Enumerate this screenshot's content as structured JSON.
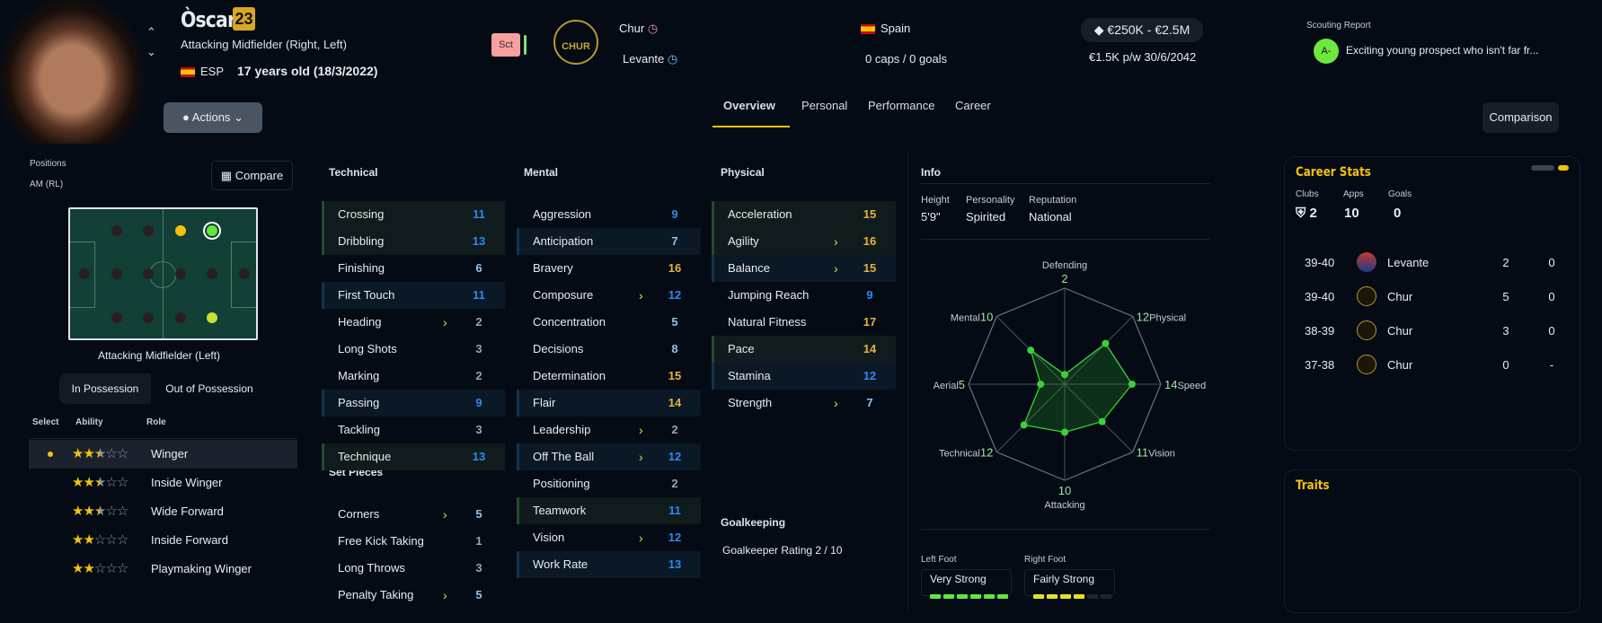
{
  "header": {
    "name": "Òscar",
    "ability_badge": "23",
    "position": "Attacking Midfielder (Right, Left)",
    "nationality_code": "ESP",
    "age": "17 years old (18/3/2022)",
    "squad_badge": "Sct",
    "club": "Chur",
    "club_logo_text": "CHUR",
    "loan_club": "Levante",
    "nation": "Spain",
    "caps": "0 caps / 0 goals",
    "value": "€250K - €2.5M",
    "wage": "€1.5K p/w 30/6/2042",
    "scouting_label": "Scouting Report",
    "scouting_grade": "A-",
    "scouting_text": "Exciting young prospect who isn't far fr...",
    "actions": "Actions",
    "comparison": "Comparison"
  },
  "tabs": [
    {
      "label": "Overview"
    },
    {
      "label": "Personal"
    },
    {
      "label": "Performance"
    },
    {
      "label": "Career"
    }
  ],
  "positions": {
    "label": "Positions",
    "value": "AM (RL)",
    "compare": "Compare",
    "caption": "Attacking Midfielder (Left)",
    "toggle": [
      "In Possession",
      "Out of Possession"
    ],
    "cols": [
      "Select",
      "Ability",
      "Role"
    ],
    "roles": [
      {
        "name": "Winger",
        "stars": 2.5,
        "selected": true
      },
      {
        "name": "Inside Winger",
        "stars": 2.5
      },
      {
        "name": "Wide Forward",
        "stars": 2.5
      },
      {
        "name": "Inside Forward",
        "stars": 2
      },
      {
        "name": "Playmaking Winger",
        "stars": 2
      }
    ]
  },
  "attributes": {
    "technical": {
      "title": "Technical",
      "items": [
        [
          "Crossing",
          11,
          "g",
          0
        ],
        [
          "Dribbling",
          13,
          "g",
          0
        ],
        [
          "Finishing",
          6,
          "",
          0
        ],
        [
          "First Touch",
          11,
          "b",
          0
        ],
        [
          "Heading",
          2,
          "",
          1
        ],
        [
          "Long Shots",
          3,
          "",
          0
        ],
        [
          "Marking",
          2,
          "",
          0
        ],
        [
          "Passing",
          9,
          "b",
          0
        ],
        [
          "Tackling",
          3,
          "",
          0
        ],
        [
          "Technique",
          13,
          "g",
          0
        ]
      ]
    },
    "set_pieces": {
      "title": "Set Pieces",
      "items": [
        [
          "Corners",
          5,
          "",
          1
        ],
        [
          "Free Kick Taking",
          1,
          "",
          0
        ],
        [
          "Long Throws",
          3,
          "",
          0
        ],
        [
          "Penalty Taking",
          5,
          "",
          1
        ]
      ]
    },
    "mental": {
      "title": "Mental",
      "items": [
        [
          "Aggression",
          9,
          "",
          0
        ],
        [
          "Anticipation",
          7,
          "b",
          0
        ],
        [
          "Bravery",
          16,
          "",
          0
        ],
        [
          "Composure",
          12,
          "",
          1
        ],
        [
          "Concentration",
          5,
          "",
          0
        ],
        [
          "Decisions",
          8,
          "",
          0
        ],
        [
          "Determination",
          15,
          "",
          0
        ],
        [
          "Flair",
          14,
          "b",
          0
        ],
        [
          "Leadership",
          2,
          "",
          1
        ],
        [
          "Off The Ball",
          12,
          "b",
          1
        ],
        [
          "Positioning",
          2,
          "",
          0
        ],
        [
          "Teamwork",
          11,
          "g",
          0
        ],
        [
          "Vision",
          12,
          "",
          1
        ],
        [
          "Work Rate",
          13,
          "b",
          0
        ]
      ]
    },
    "physical": {
      "title": "Physical",
      "items": [
        [
          "Acceleration",
          15,
          "g",
          0
        ],
        [
          "Agility",
          16,
          "g",
          1
        ],
        [
          "Balance",
          15,
          "b",
          1
        ],
        [
          "Jumping Reach",
          9,
          "",
          0
        ],
        [
          "Natural Fitness",
          17,
          "",
          0
        ],
        [
          "Pace",
          14,
          "g",
          0
        ],
        [
          "Stamina",
          12,
          "b",
          0
        ],
        [
          "Strength",
          7,
          "",
          1
        ]
      ]
    },
    "goalkeeping": {
      "title": "Goalkeeping",
      "rating": "Goalkeeper Rating 2 / 10"
    }
  },
  "info": {
    "title": "Info",
    "fields": [
      {
        "label": "Height",
        "value": "5'9\""
      },
      {
        "label": "Personality",
        "value": "Spirited"
      },
      {
        "label": "Reputation",
        "value": "National"
      }
    ],
    "left_foot": {
      "label": "Left Foot",
      "value": "Very Strong",
      "level": 6
    },
    "right_foot": {
      "label": "Right Foot",
      "value": "Fairly Strong",
      "level": 4
    }
  },
  "chart_data": {
    "type": "radar",
    "max": 20,
    "axes": [
      "Defending",
      "Physical",
      "Speed",
      "Vision",
      "Attacking",
      "Technical",
      "Aerial",
      "Mental"
    ],
    "values": [
      2,
      12,
      14,
      11,
      10,
      12,
      5,
      10
    ]
  },
  "career": {
    "title": "Career Stats",
    "summary": [
      {
        "label": "Clubs",
        "value": "2"
      },
      {
        "label": "Apps",
        "value": "10"
      },
      {
        "label": "Goals",
        "value": "0"
      }
    ],
    "rows": [
      {
        "season": "39-40",
        "club": "Levante",
        "apps": "2",
        "goals": "0"
      },
      {
        "season": "39-40",
        "club": "Chur",
        "apps": "5",
        "goals": "0"
      },
      {
        "season": "38-39",
        "club": "Chur",
        "apps": "3",
        "goals": "0"
      },
      {
        "season": "37-38",
        "club": "Chur",
        "apps": "0",
        "goals": "-"
      }
    ]
  },
  "traits": {
    "title": "Traits"
  },
  "colors": {
    "accent": "#f4c20d",
    "green": "#5ee83a",
    "blue": "#2a8cf0",
    "gold": "#e6b43a"
  }
}
